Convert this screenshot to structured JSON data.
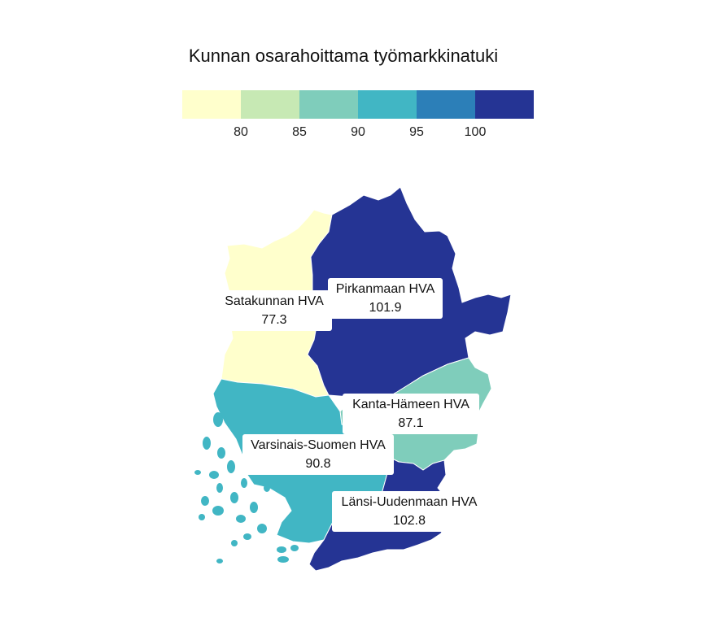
{
  "map": {
    "title": "Kunnan osarahoittama työmarkkinatuki",
    "legend": {
      "ticks": [
        "80",
        "85",
        "90",
        "95",
        "100"
      ],
      "colors": [
        "#ffffcc",
        "#c7e9b4",
        "#7fcdbb",
        "#41b6c4",
        "#2c7fb8",
        "#253494"
      ]
    },
    "regions": [
      {
        "name": "Satakunnan HVA",
        "value": "77.3",
        "color": "#ffffcc"
      },
      {
        "name": "Pirkanmaan HVA",
        "value": "101.9",
        "color": "#253494"
      },
      {
        "name": "Kanta-Hämeen HVA",
        "value": "87.1",
        "color": "#7fcdbb"
      },
      {
        "name": "Varsinais-Suomen HVA",
        "value": "90.8",
        "color": "#41b6c4"
      },
      {
        "name": "Länsi-Uudenmaan HVA",
        "value": "102.8",
        "color": "#253494"
      }
    ]
  }
}
